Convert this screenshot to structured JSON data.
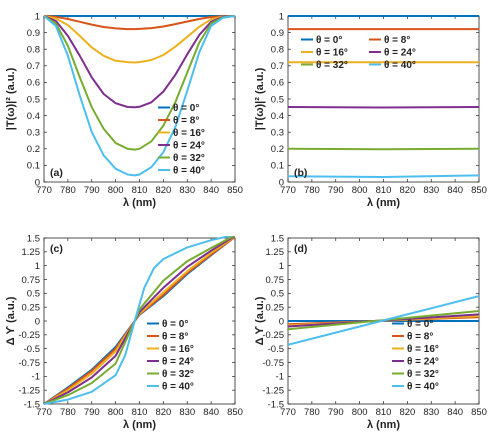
{
  "chart_data": [
    {
      "type": "line",
      "panel_label": "(a)",
      "xlabel": "λ (nm)",
      "ylabel": "|T(ω)|² (a.u.)",
      "xlim": [
        770,
        850
      ],
      "ylim": [
        0,
        1
      ],
      "xticks": [
        770,
        780,
        790,
        800,
        810,
        820,
        830,
        840,
        850
      ],
      "yticks": [
        0,
        0.1,
        0.2,
        0.3,
        0.4,
        0.5,
        0.6,
        0.7,
        0.8,
        0.9,
        1
      ],
      "ytick_labels": [
        "0",
        "0.1",
        "0.2",
        "0.3",
        "0.4",
        "0.5",
        "0.6",
        "0.7",
        "0.8",
        "0.9",
        "1"
      ],
      "legend": "right",
      "series": [
        {
          "name": "θ = 0°",
          "color": "#0072BD",
          "x": [
            770,
            775,
            780,
            785,
            790,
            795,
            800,
            805,
            808,
            810,
            815,
            820,
            825,
            830,
            835,
            840,
            845,
            850
          ],
          "y": [
            1,
            1,
            1,
            1,
            1,
            1,
            1,
            1,
            1,
            1,
            1,
            1,
            1,
            1,
            1,
            1,
            1,
            1
          ]
        },
        {
          "name": "θ = 8°",
          "color": "#D95319",
          "x": [
            770,
            775,
            780,
            785,
            790,
            795,
            800,
            805,
            808,
            810,
            815,
            820,
            825,
            830,
            835,
            840,
            845,
            850
          ],
          "y": [
            1,
            0.995,
            0.982,
            0.965,
            0.948,
            0.934,
            0.925,
            0.921,
            0.921,
            0.922,
            0.927,
            0.937,
            0.951,
            0.967,
            0.982,
            0.994,
            0.999,
            1
          ]
        },
        {
          "name": "θ = 16°",
          "color": "#EDB120",
          "x": [
            770,
            775,
            780,
            785,
            790,
            795,
            800,
            805,
            808,
            810,
            815,
            820,
            825,
            830,
            835,
            840,
            845,
            850
          ],
          "y": [
            1,
            0.985,
            0.945,
            0.88,
            0.81,
            0.76,
            0.73,
            0.722,
            0.72,
            0.722,
            0.735,
            0.765,
            0.815,
            0.875,
            0.935,
            0.98,
            0.997,
            1
          ]
        },
        {
          "name": "θ = 24°",
          "color": "#7E2F8E",
          "x": [
            770,
            775,
            780,
            785,
            790,
            795,
            800,
            805,
            808,
            810,
            815,
            820,
            825,
            830,
            835,
            840,
            845,
            850
          ],
          "y": [
            1,
            0.97,
            0.88,
            0.76,
            0.63,
            0.53,
            0.475,
            0.452,
            0.45,
            0.453,
            0.48,
            0.545,
            0.645,
            0.77,
            0.885,
            0.965,
            0.995,
            1
          ]
        },
        {
          "name": "θ = 32°",
          "color": "#77AC30",
          "x": [
            770,
            775,
            780,
            785,
            790,
            795,
            800,
            805,
            808,
            810,
            815,
            820,
            825,
            830,
            835,
            840,
            845,
            850
          ],
          "y": [
            1,
            0.955,
            0.82,
            0.63,
            0.45,
            0.32,
            0.235,
            0.2,
            0.195,
            0.2,
            0.245,
            0.34,
            0.48,
            0.66,
            0.84,
            0.955,
            0.993,
            1
          ]
        },
        {
          "name": "θ = 40°",
          "color": "#4DBEEE",
          "x": [
            770,
            775,
            780,
            785,
            790,
            795,
            800,
            805,
            808,
            810,
            815,
            820,
            825,
            830,
            835,
            840,
            845,
            850
          ],
          "y": [
            1,
            0.94,
            0.76,
            0.52,
            0.3,
            0.16,
            0.08,
            0.045,
            0.04,
            0.045,
            0.09,
            0.18,
            0.33,
            0.55,
            0.78,
            0.94,
            0.99,
            1
          ]
        }
      ]
    },
    {
      "type": "line",
      "panel_label": "(b)",
      "xlabel": "λ (nm)",
      "ylabel": "|T(ω)|² (a.u.)",
      "xlim": [
        770,
        850
      ],
      "ylim": [
        0,
        1
      ],
      "xticks": [
        770,
        780,
        790,
        800,
        810,
        820,
        830,
        840,
        850
      ],
      "yticks": [
        0,
        0.1,
        0.2,
        0.3,
        0.4,
        0.5,
        0.6,
        0.7,
        0.8,
        0.9,
        1
      ],
      "ytick_labels": [
        "0",
        "0.1",
        "0.2",
        "0.3",
        "0.4",
        "0.5",
        "0.6",
        "0.7",
        "0.8",
        "0.9",
        "1"
      ],
      "legend": "top, two columns",
      "series": [
        {
          "name": "θ = 0°",
          "color": "#0072BD",
          "x": [
            770,
            850
          ],
          "y": [
            1,
            1
          ]
        },
        {
          "name": "θ = 8°",
          "color": "#D95319",
          "x": [
            770,
            850
          ],
          "y": [
            0.921,
            0.921
          ]
        },
        {
          "name": "θ = 16°",
          "color": "#EDB120",
          "x": [
            770,
            850
          ],
          "y": [
            0.721,
            0.721
          ]
        },
        {
          "name": "θ = 24°",
          "color": "#7E2F8E",
          "x": [
            770,
            810,
            850
          ],
          "y": [
            0.452,
            0.449,
            0.452
          ]
        },
        {
          "name": "θ = 32°",
          "color": "#77AC30",
          "x": [
            770,
            810,
            850
          ],
          "y": [
            0.2,
            0.197,
            0.2
          ]
        },
        {
          "name": "θ = 40°",
          "color": "#4DBEEE",
          "x": [
            770,
            810,
            850
          ],
          "y": [
            0.035,
            0.03,
            0.04
          ]
        }
      ]
    },
    {
      "type": "line",
      "panel_label": "(c)",
      "xlabel": "λ (nm)",
      "ylabel": "Δ ϒ (a.u.)",
      "xlim": [
        770,
        850
      ],
      "ylim": [
        -1.5,
        1.5
      ],
      "xticks": [
        770,
        780,
        790,
        800,
        810,
        820,
        830,
        840,
        850
      ],
      "yticks": [
        -1.5,
        -1.25,
        -1,
        -0.75,
        -0.5,
        -0.25,
        0,
        0.25,
        0.5,
        0.75,
        1,
        1.25,
        1.5
      ],
      "ytick_labels": [
        "-1.5",
        "-1.25",
        "-1",
        "-0.75",
        "-0.5",
        "-0.25",
        "0",
        "0.25",
        "0.5",
        "0.75",
        "1",
        "1.25",
        "1.5"
      ],
      "legend": "bottom-right",
      "series": [
        {
          "name": "θ = 0°",
          "color": "#0072BD",
          "x": [
            770,
            780,
            790,
            800,
            808,
            810,
            820,
            830,
            840,
            850
          ],
          "y": [
            -1.5,
            -1.2,
            -0.88,
            -0.47,
            0,
            0.11,
            0.45,
            0.85,
            1.19,
            1.52
          ]
        },
        {
          "name": "θ = 8°",
          "color": "#D95319",
          "x": [
            770,
            780,
            790,
            800,
            808,
            810,
            820,
            830,
            840,
            850
          ],
          "y": [
            -1.5,
            -1.22,
            -0.9,
            -0.5,
            0,
            0.12,
            0.47,
            0.87,
            1.2,
            1.52
          ]
        },
        {
          "name": "θ = 16°",
          "color": "#EDB120",
          "x": [
            770,
            780,
            790,
            800,
            808,
            810,
            820,
            830,
            840,
            850
          ],
          "y": [
            -1.5,
            -1.25,
            -0.95,
            -0.55,
            0,
            0.13,
            0.52,
            0.9,
            1.23,
            1.53
          ]
        },
        {
          "name": "θ = 24°",
          "color": "#7E2F8E",
          "x": [
            770,
            780,
            790,
            800,
            808,
            810,
            820,
            830,
            840,
            850
          ],
          "y": [
            -1.5,
            -1.29,
            -1.02,
            -0.63,
            0,
            0.16,
            0.6,
            0.98,
            1.27,
            1.54
          ]
        },
        {
          "name": "θ = 32°",
          "color": "#77AC30",
          "x": [
            770,
            780,
            790,
            800,
            808,
            810,
            820,
            830,
            840,
            850
          ],
          "y": [
            -1.5,
            -1.34,
            -1.12,
            -0.77,
            0,
            0.21,
            0.73,
            1.08,
            1.32,
            1.55
          ]
        },
        {
          "name": "θ = 40°",
          "color": "#4DBEEE",
          "x": [
            770,
            780,
            790,
            800,
            804,
            808,
            812,
            816,
            820,
            830,
            840,
            850
          ],
          "y": [
            -1.5,
            -1.42,
            -1.28,
            -0.98,
            -0.62,
            0,
            0.6,
            0.95,
            1.12,
            1.33,
            1.46,
            1.56
          ]
        }
      ]
    },
    {
      "type": "line",
      "panel_label": "(d)",
      "xlabel": "λ (nm)",
      "ylabel": "Δ ϒ (a.u.)",
      "xlim": [
        770,
        850
      ],
      "ylim": [
        -1.5,
        1.5
      ],
      "xticks": [
        770,
        780,
        790,
        800,
        810,
        820,
        830,
        840,
        850
      ],
      "yticks": [
        -1.5,
        -1.25,
        -1,
        -0.75,
        -0.5,
        -0.25,
        0,
        0.25,
        0.5,
        0.75,
        1,
        1.25,
        1.5
      ],
      "ytick_labels": [
        "-1.5",
        "-1.25",
        "-1",
        "-0.75",
        "-0.5",
        "-0.25",
        "0",
        "0.25",
        "0.5",
        "0.75",
        "1",
        "1.25",
        "1.5"
      ],
      "legend": "bottom-right",
      "series": [
        {
          "name": "θ = 0°",
          "color": "#0072BD",
          "x": [
            770,
            850
          ],
          "y": [
            0,
            0
          ]
        },
        {
          "name": "θ = 8°",
          "color": "#D95319",
          "x": [
            770,
            850
          ],
          "y": [
            -0.06,
            0.07
          ]
        },
        {
          "name": "θ = 16°",
          "color": "#EDB120",
          "x": [
            770,
            850
          ],
          "y": [
            -0.08,
            0.09
          ]
        },
        {
          "name": "θ = 24°",
          "color": "#7E2F8E",
          "x": [
            770,
            850
          ],
          "y": [
            -0.1,
            0.12
          ]
        },
        {
          "name": "θ = 32°",
          "color": "#77AC30",
          "x": [
            770,
            850
          ],
          "y": [
            -0.15,
            0.18
          ]
        },
        {
          "name": "θ = 40°",
          "color": "#4DBEEE",
          "x": [
            770,
            850
          ],
          "y": [
            -0.43,
            0.45
          ]
        }
      ]
    }
  ]
}
